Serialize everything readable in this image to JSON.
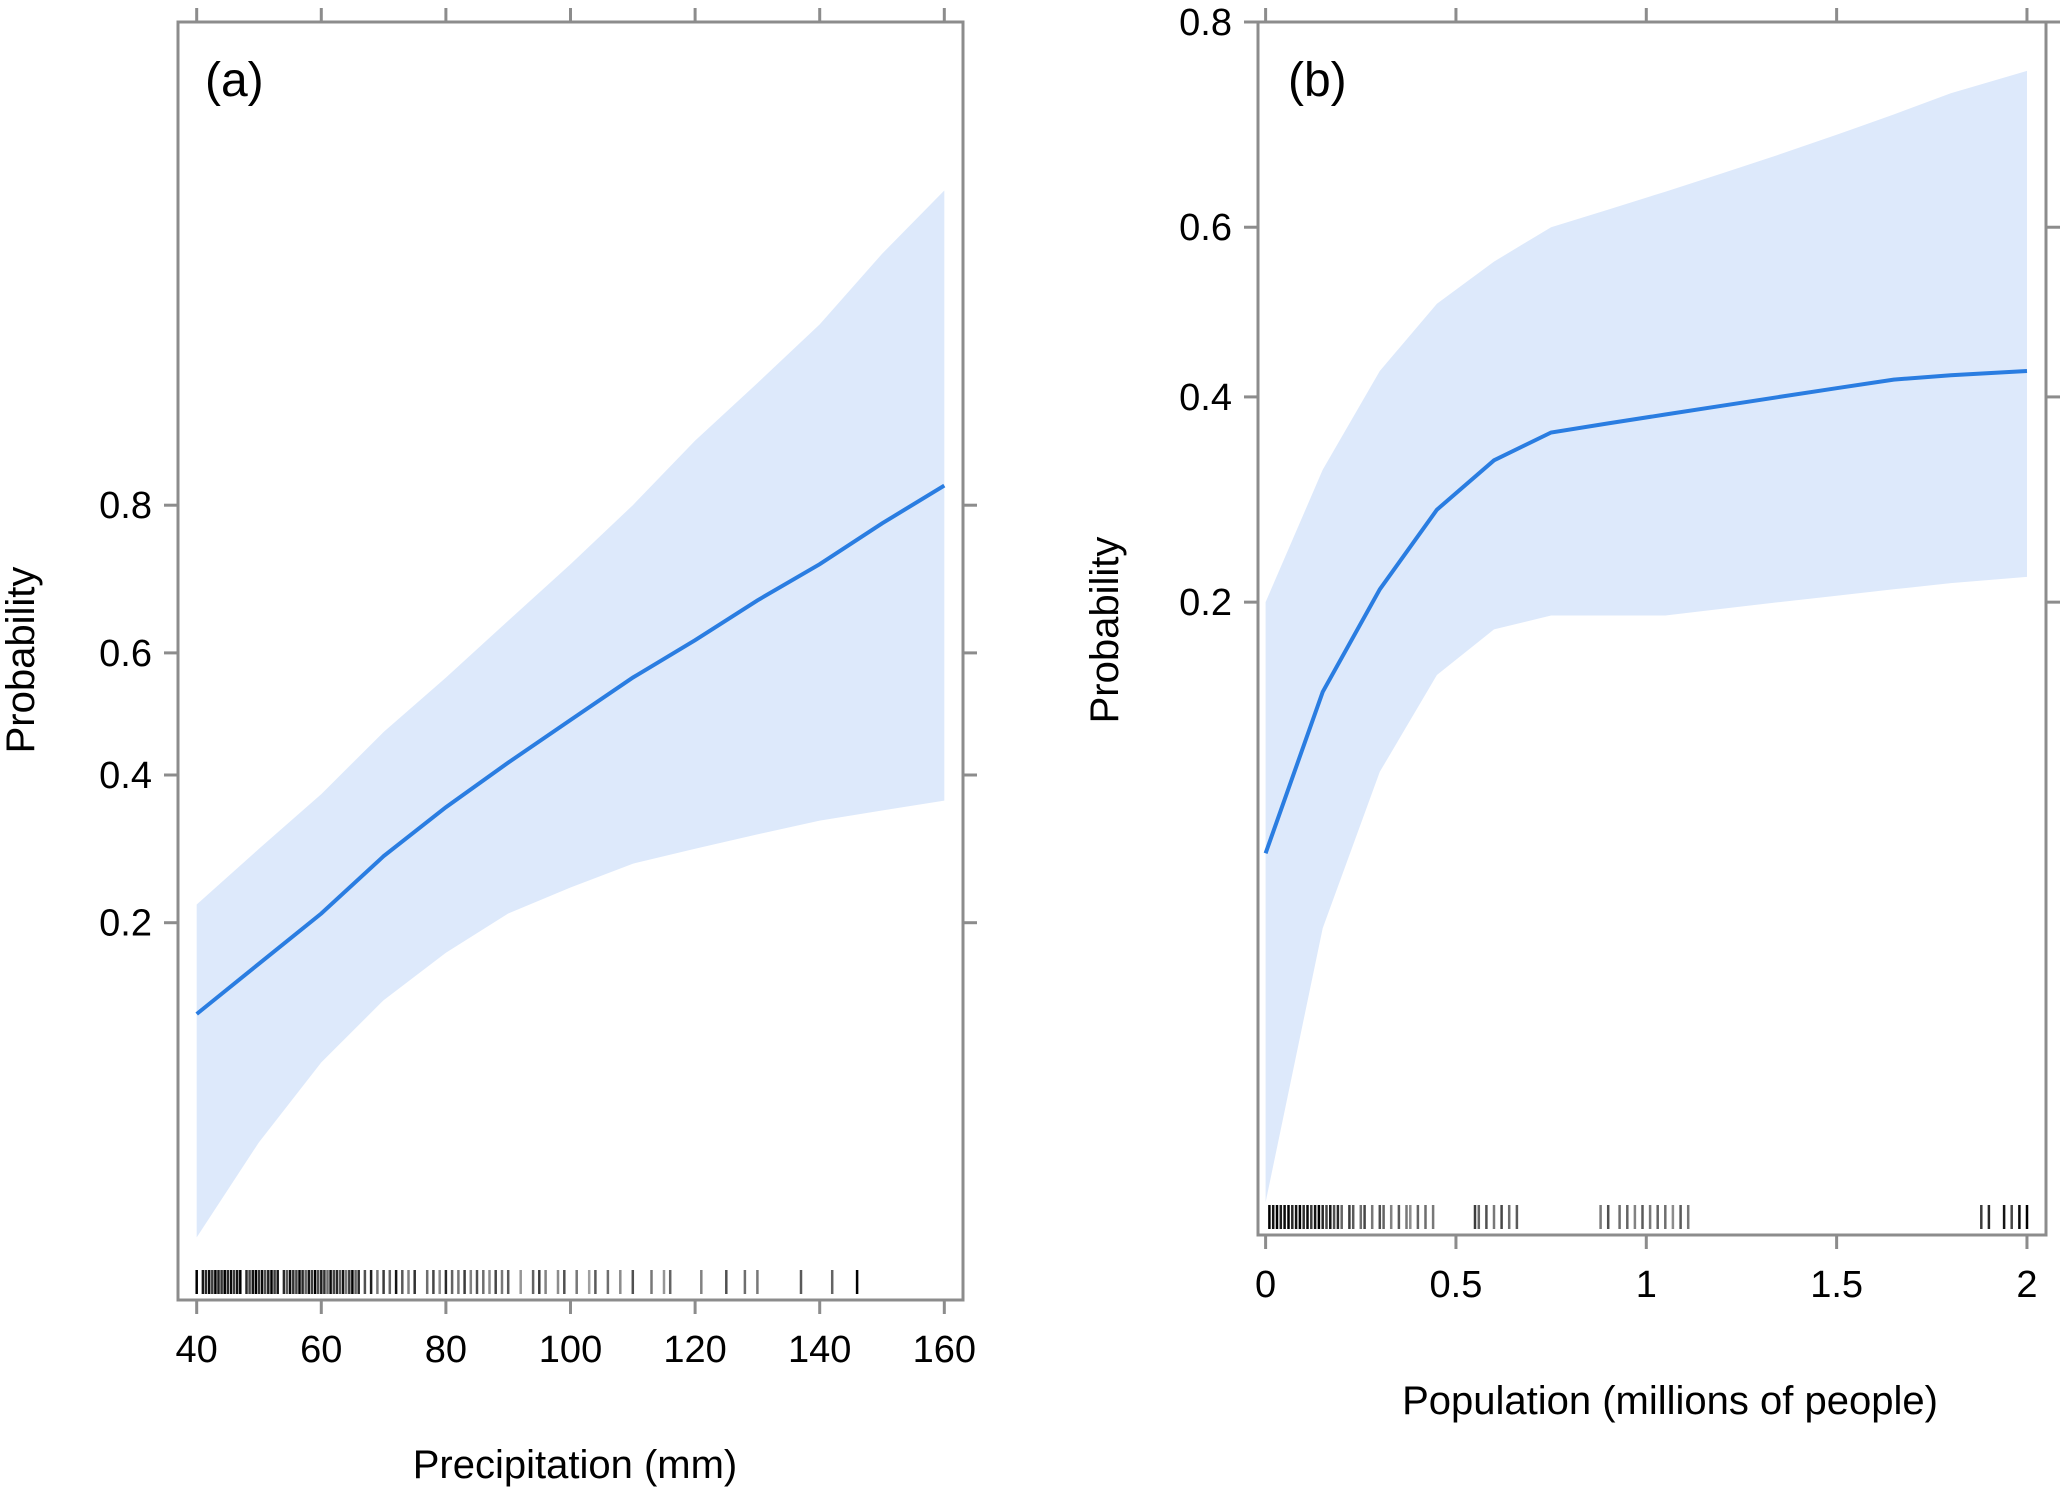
{
  "colors": {
    "line": "#2a7de1",
    "band": "#dde9fb",
    "frame": "#8c8c8c",
    "rug": "#000000"
  },
  "chart_data": [
    {
      "type": "line",
      "panel_label": "(a)",
      "xlabel": "Precipitation (mm)",
      "ylabel": "Probability",
      "x_ticks": [
        "40",
        "60",
        "80",
        "100",
        "120",
        "140",
        "160"
      ],
      "y_ticks": [
        "0.2",
        "0.4",
        "0.6",
        "0.8"
      ],
      "y_scale": "logit",
      "xlim": [
        37,
        163
      ],
      "ylim": [
        0.02,
        0.99
      ],
      "x_tick_values": [
        40,
        60,
        80,
        100,
        120,
        140,
        160
      ],
      "y_tick_values": [
        0.2,
        0.4,
        0.6,
        0.8
      ],
      "series": [
        {
          "x": [
            40,
            50,
            60,
            70,
            80,
            90,
            100,
            110,
            120,
            130,
            140,
            150,
            160
          ],
          "y": [
            0.12,
            0.16,
            0.21,
            0.28,
            0.35,
            0.42,
            0.49,
            0.56,
            0.62,
            0.68,
            0.73,
            0.78,
            0.82
          ],
          "lower": [
            0.03,
            0.055,
            0.09,
            0.13,
            0.17,
            0.21,
            0.24,
            0.27,
            0.29,
            0.31,
            0.33,
            0.345,
            0.36
          ],
          "upper": [
            0.22,
            0.29,
            0.37,
            0.47,
            0.56,
            0.65,
            0.73,
            0.8,
            0.86,
            0.9,
            0.93,
            0.955,
            0.97
          ]
        }
      ],
      "rug": [
        40,
        41,
        41.5,
        42,
        42.5,
        43,
        43.5,
        44,
        44.5,
        45,
        45.5,
        46,
        46.5,
        47,
        48,
        48.5,
        49,
        49.5,
        50,
        50.5,
        51,
        51.5,
        52,
        52.5,
        53,
        54,
        54.5,
        55,
        55.5,
        56,
        56.5,
        57,
        57.5,
        58,
        58.5,
        59,
        59.5,
        60,
        60.5,
        61,
        61.5,
        62,
        62.5,
        63,
        63.5,
        64,
        64.5,
        65,
        65.5,
        66,
        67,
        68,
        69,
        70,
        71,
        72,
        73,
        74,
        75,
        77,
        78,
        79,
        80,
        81,
        82,
        83,
        84,
        85,
        86,
        87,
        88,
        89,
        90,
        92,
        94,
        95,
        96,
        98,
        99,
        101,
        103,
        104,
        106,
        108,
        110,
        113,
        115,
        116,
        121,
        125,
        128,
        130,
        137,
        142,
        146
      ],
      "rug_tones": [
        0.0,
        0.1,
        0.2,
        0.05,
        0.3,
        0.0,
        0.15,
        0.25,
        0.0,
        0.2,
        0.05,
        0.3,
        0.1,
        0.0,
        0.2,
        0.35,
        0.1,
        0.0,
        0.25,
        0.05,
        0.4,
        0.15,
        0.0,
        0.3,
        0.1,
        0.2,
        0.45,
        0.05,
        0.25,
        0.35,
        0.0,
        0.2,
        0.5,
        0.1,
        0.3,
        0.0,
        0.4,
        0.15,
        0.25,
        0.55,
        0.05,
        0.35,
        0.2,
        0.45,
        0.1,
        0.6,
        0.3,
        0.0,
        0.5,
        0.2,
        0.4,
        0.15,
        0.6,
        0.3,
        0.5,
        0.1,
        0.45,
        0.65,
        0.25,
        0.55,
        0.35,
        0.7,
        0.2,
        0.5,
        0.6,
        0.3,
        0.65,
        0.4,
        0.55,
        0.7,
        0.35,
        0.6,
        0.45,
        0.75,
        0.5,
        0.3,
        0.65,
        0.7,
        0.4,
        0.6,
        0.8,
        0.45,
        0.55,
        0.7,
        0.4,
        0.6,
        0.75,
        0.5,
        0.65,
        0.4,
        0.55,
        0.6,
        0.45,
        0.5
      ]
    },
    {
      "type": "line",
      "panel_label": "(b)",
      "xlabel": "Population (millions of people)",
      "ylabel": "Probability",
      "x_ticks": [
        "0",
        "0.5",
        "1",
        "1.5",
        "2"
      ],
      "y_ticks": [
        "0.2",
        "0.4",
        "0.6",
        "0.8"
      ],
      "y_scale": "logit",
      "xlim": [
        -0.02,
        2.05
      ],
      "ylim": [
        0.012,
        0.8
      ],
      "x_tick_values": [
        0,
        0.5,
        1,
        1.5,
        2
      ],
      "y_tick_values": [
        0.2,
        0.4,
        0.6,
        0.8
      ],
      "series": [
        {
          "x": [
            0,
            0.15,
            0.3,
            0.45,
            0.6,
            0.75,
            0.9,
            1.05,
            1.2,
            1.35,
            1.5,
            1.65,
            1.8,
            2.0
          ],
          "y": [
            0.07,
            0.14,
            0.21,
            0.28,
            0.33,
            0.36,
            0.37,
            0.38,
            0.39,
            0.4,
            0.41,
            0.42,
            0.425,
            0.43
          ],
          "lower": [
            0.014,
            0.05,
            0.1,
            0.15,
            0.18,
            0.19,
            0.19,
            0.19,
            0.195,
            0.2,
            0.205,
            0.21,
            0.215,
            0.22
          ],
          "upper": [
            0.2,
            0.32,
            0.43,
            0.51,
            0.56,
            0.6,
            0.62,
            0.64,
            0.66,
            0.68,
            0.7,
            0.72,
            0.74,
            0.76
          ]
        }
      ],
      "rug": [
        0.01,
        0.02,
        0.03,
        0.04,
        0.05,
        0.06,
        0.07,
        0.08,
        0.09,
        0.1,
        0.11,
        0.12,
        0.13,
        0.14,
        0.15,
        0.16,
        0.17,
        0.18,
        0.19,
        0.2,
        0.22,
        0.23,
        0.25,
        0.26,
        0.28,
        0.3,
        0.31,
        0.33,
        0.35,
        0.37,
        0.38,
        0.4,
        0.42,
        0.44,
        0.55,
        0.56,
        0.58,
        0.6,
        0.62,
        0.64,
        0.66,
        0.88,
        0.9,
        0.93,
        0.95,
        0.97,
        0.99,
        1.01,
        1.03,
        1.05,
        1.07,
        1.09,
        1.11,
        1.88,
        1.9,
        1.94,
        1.96,
        1.98,
        2.0
      ],
      "rug_tones": [
        0.0,
        0.1,
        0.0,
        0.15,
        0.05,
        0.0,
        0.2,
        0.1,
        0.0,
        0.25,
        0.05,
        0.3,
        0.1,
        0.0,
        0.2,
        0.35,
        0.1,
        0.4,
        0.2,
        0.5,
        0.3,
        0.45,
        0.55,
        0.35,
        0.6,
        0.4,
        0.5,
        0.65,
        0.45,
        0.6,
        0.7,
        0.5,
        0.55,
        0.6,
        0.3,
        0.5,
        0.4,
        0.6,
        0.35,
        0.55,
        0.45,
        0.6,
        0.4,
        0.55,
        0.5,
        0.65,
        0.45,
        0.6,
        0.5,
        0.55,
        0.7,
        0.45,
        0.6,
        0.3,
        0.2,
        0.1,
        0.35,
        0.05,
        0.0
      ]
    }
  ]
}
